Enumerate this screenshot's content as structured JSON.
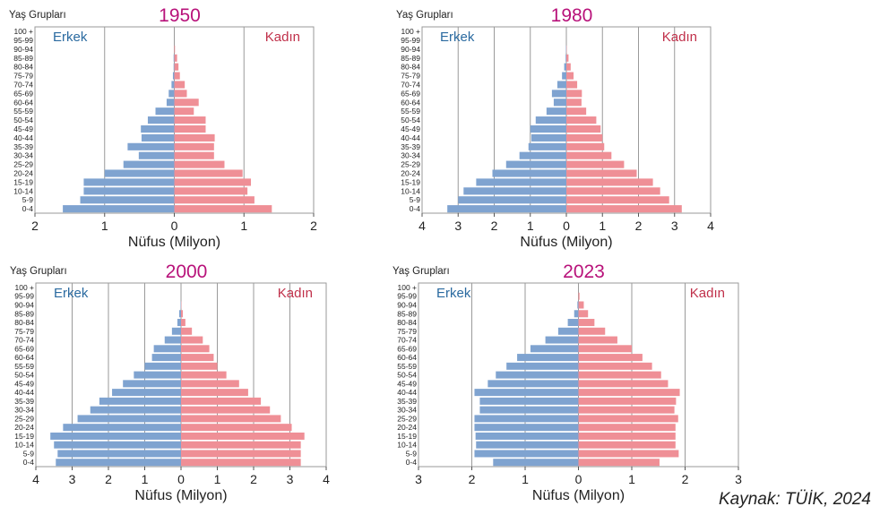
{
  "source": "Kaynak: TÜİK, 2024",
  "colors": {
    "male": "#7fa3d0",
    "female": "#ef8f96",
    "title": "#b8127a",
    "male_label": "#2a6aa0",
    "female_label": "#c0304a"
  },
  "chart_data": [
    {
      "type": "bar",
      "title": "1950",
      "ylabel": "Yaş Grupları",
      "xlabel": "Nüfus (Milyon)",
      "male_label": "Erkek",
      "female_label": "Kadın",
      "xlim": [
        -2,
        2
      ],
      "xticks": [
        2,
        1,
        0,
        1,
        2
      ],
      "categories": [
        "0-4",
        "5-9",
        "10-14",
        "15-19",
        "20-24",
        "25-29",
        "30-34",
        "35-39",
        "40-44",
        "45-49",
        "50-54",
        "55-59",
        "60-64",
        "65-69",
        "70-74",
        "75-79",
        "80-84",
        "85-89",
        "90-94",
        "95-99",
        "100 +"
      ],
      "series": [
        {
          "name": "Erkek",
          "values": [
            1.6,
            1.35,
            1.3,
            1.3,
            1.0,
            0.73,
            0.51,
            0.67,
            0.47,
            0.48,
            0.38,
            0.27,
            0.11,
            0.08,
            0.04,
            0.02,
            0.01,
            0.01,
            0,
            0,
            0
          ]
        },
        {
          "name": "Kadın",
          "values": [
            1.4,
            1.15,
            1.05,
            1.1,
            0.98,
            0.72,
            0.57,
            0.57,
            0.58,
            0.45,
            0.45,
            0.28,
            0.35,
            0.18,
            0.15,
            0.08,
            0.06,
            0.04,
            0.01,
            0,
            0
          ]
        }
      ]
    },
    {
      "type": "bar",
      "title": "1980",
      "ylabel": "Yaş Grupları",
      "xlabel": "Nüfus (Milyon)",
      "male_label": "Erkek",
      "female_label": "Kadın",
      "xlim": [
        -4,
        4
      ],
      "xticks": [
        4,
        3,
        2,
        1,
        0,
        1,
        2,
        3,
        4
      ],
      "categories": [
        "0-4",
        "5-9",
        "10-14",
        "15-19",
        "20-24",
        "25-29",
        "30-34",
        "35-39",
        "40-44",
        "45-49",
        "50-54",
        "55-59",
        "60-64",
        "65-69",
        "70-74",
        "75-79",
        "80-84",
        "85-89",
        "90-94",
        "95-99",
        "100 +"
      ],
      "series": [
        {
          "name": "Erkek",
          "values": [
            3.3,
            3.0,
            2.85,
            2.5,
            2.05,
            1.67,
            1.3,
            1.05,
            0.97,
            1.0,
            0.85,
            0.55,
            0.35,
            0.4,
            0.25,
            0.12,
            0.06,
            0.02,
            0.01,
            0,
            0
          ]
        },
        {
          "name": "Kadın",
          "values": [
            3.2,
            2.85,
            2.6,
            2.4,
            1.95,
            1.6,
            1.25,
            1.05,
            1.0,
            0.95,
            0.83,
            0.55,
            0.42,
            0.43,
            0.3,
            0.2,
            0.12,
            0.06,
            0.01,
            0,
            0
          ]
        }
      ]
    },
    {
      "type": "bar",
      "title": "2000",
      "ylabel": "Yaş Grupları",
      "xlabel": "Nüfus (Milyon)",
      "male_label": "Erkek",
      "female_label": "Kadın",
      "xlim": [
        -4,
        4
      ],
      "xticks": [
        4,
        3,
        2,
        1,
        0,
        1,
        2,
        3,
        4
      ],
      "categories": [
        "0-4",
        "5-9",
        "10-14",
        "15-19",
        "20-24",
        "25-29",
        "30-34",
        "35-39",
        "40-44",
        "45-49",
        "50-54",
        "55-59",
        "60-64",
        "65-69",
        "70-74",
        "75-79",
        "80-84",
        "85-89",
        "90-94",
        "95-99",
        "100 +"
      ],
      "series": [
        {
          "name": "Erkek",
          "values": [
            3.45,
            3.4,
            3.5,
            3.6,
            3.25,
            2.85,
            2.5,
            2.25,
            1.9,
            1.6,
            1.3,
            1.0,
            0.8,
            0.75,
            0.45,
            0.25,
            0.1,
            0.05,
            0.01,
            0,
            0
          ]
        },
        {
          "name": "Kadın",
          "values": [
            3.3,
            3.3,
            3.3,
            3.4,
            3.05,
            2.75,
            2.45,
            2.2,
            1.85,
            1.6,
            1.25,
            1.0,
            0.9,
            0.78,
            0.6,
            0.3,
            0.12,
            0.05,
            0.01,
            0,
            0
          ]
        }
      ]
    },
    {
      "type": "bar",
      "title": "2023",
      "ylabel": "Yaş Grupları",
      "xlabel": "Nüfus (Milyon)",
      "male_label": "Erkek",
      "female_label": "Kadın",
      "xlim": [
        -3,
        3
      ],
      "xticks": [
        3,
        2,
        1,
        0,
        1,
        2,
        3
      ],
      "categories": [
        "0-4",
        "5-9",
        "10-14",
        "15-19",
        "20-24",
        "25-29",
        "30-34",
        "35-39",
        "40-44",
        "45-49",
        "50-54",
        "55-59",
        "60-64",
        "65-69",
        "70-74",
        "75-79",
        "80-84",
        "85-89",
        "90-94",
        "95-99",
        "100 +"
      ],
      "series": [
        {
          "name": "Erkek",
          "values": [
            1.6,
            1.95,
            1.92,
            1.93,
            1.95,
            1.95,
            1.85,
            1.85,
            1.95,
            1.7,
            1.55,
            1.35,
            1.15,
            0.9,
            0.62,
            0.38,
            0.2,
            0.08,
            0.02,
            0,
            0
          ]
        },
        {
          "name": "Kadın",
          "values": [
            1.52,
            1.88,
            1.82,
            1.82,
            1.82,
            1.87,
            1.8,
            1.83,
            1.9,
            1.68,
            1.55,
            1.38,
            1.2,
            1.0,
            0.73,
            0.5,
            0.3,
            0.18,
            0.1,
            0.02,
            0
          ]
        }
      ]
    }
  ]
}
